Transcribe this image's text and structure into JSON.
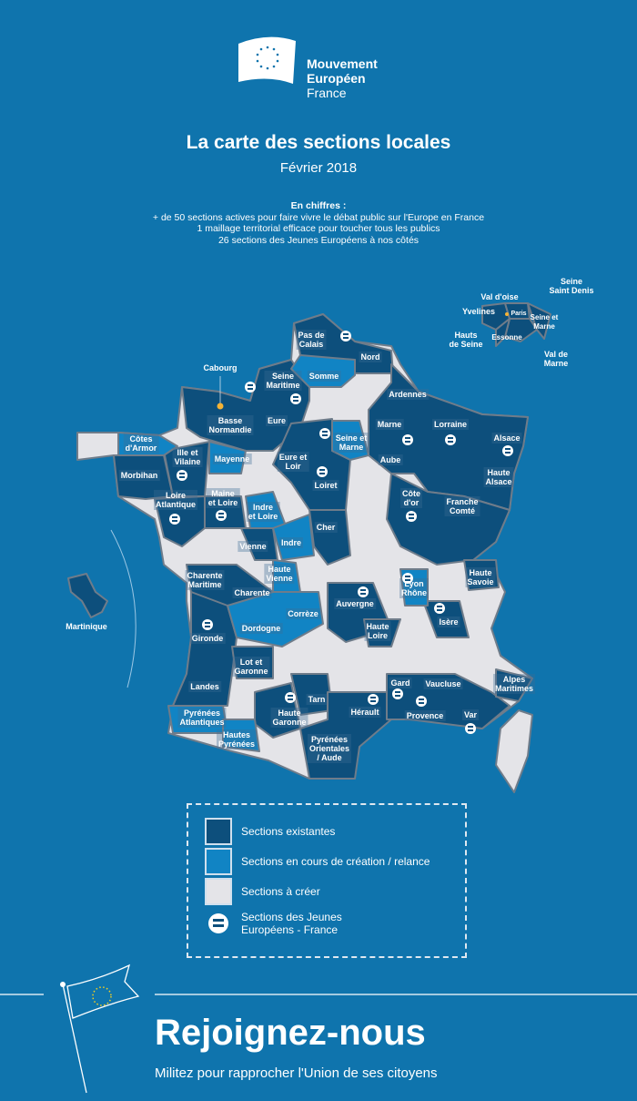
{
  "header": {
    "org_line1": "Mouvement",
    "org_line2": "Européen",
    "org_line3": "France",
    "title": "La carte des sections locales",
    "date": "Février 2018"
  },
  "stats": {
    "heading": "En chiffres :",
    "lines": [
      "+ de 50 sections actives pour faire vivre le débat public sur l'Europe en France",
      "1 maillage territorial efficace pour toucher tous les publics",
      "26 sections des Jeunes Européens à nos côtés"
    ]
  },
  "colors": {
    "background": "#0f74ad",
    "existing": "#0d4f7c",
    "in_progress": "#1184c4",
    "to_create": "#e4e4e8",
    "highlight_point": "#f5b335"
  },
  "map": {
    "sections": [
      {
        "name": "Pas de\nCalais",
        "status": "existing",
        "je": true
      },
      {
        "name": "Nord",
        "status": "existing",
        "je": false
      },
      {
        "name": "Somme",
        "status": "in_progress",
        "je": false
      },
      {
        "name": "Seine\nMaritime",
        "status": "existing",
        "je": true
      },
      {
        "name": "Ardennes",
        "status": "existing",
        "je": false
      },
      {
        "name": "Basse\nNormandie",
        "status": "existing",
        "je": false
      },
      {
        "name": "Eure",
        "status": "existing",
        "je": false
      },
      {
        "name": "Marne",
        "status": "existing",
        "je": true
      },
      {
        "name": "Lorraine",
        "status": "existing",
        "je": true
      },
      {
        "name": "Alsace",
        "status": "existing",
        "je": true
      },
      {
        "name": "Seine et\nMarne",
        "status": "in_progress",
        "je": false
      },
      {
        "name": "Côtes\nd'Armor",
        "status": "in_progress",
        "je": false
      },
      {
        "name": "Ille et\nVilaine",
        "status": "existing",
        "je": true
      },
      {
        "name": "Mayenne",
        "status": "in_progress",
        "je": false
      },
      {
        "name": "Eure et\nLoir",
        "status": "existing",
        "je": false
      },
      {
        "name": "Aube",
        "status": "existing",
        "je": false
      },
      {
        "name": "Morbihan",
        "status": "existing",
        "je": false
      },
      {
        "name": "Haute\nAlsace",
        "status": "existing",
        "je": false
      },
      {
        "name": "Loiret",
        "status": "existing",
        "je": true
      },
      {
        "name": "Loire\nAtlantique",
        "status": "existing",
        "je": true
      },
      {
        "name": "Maine\net Loire",
        "status": "existing",
        "je": true
      },
      {
        "name": "Indre\net Loire",
        "status": "in_progress",
        "je": false
      },
      {
        "name": "Côte\nd'or",
        "status": "existing",
        "je": true
      },
      {
        "name": "Franche\nComté",
        "status": "existing",
        "je": false
      },
      {
        "name": "Cher",
        "status": "existing",
        "je": false
      },
      {
        "name": "Vienne",
        "status": "existing",
        "je": false
      },
      {
        "name": "Indre",
        "status": "in_progress",
        "je": false
      },
      {
        "name": "Haute\nVienne",
        "status": "in_progress",
        "je": false
      },
      {
        "name": "Charente\nMaritime",
        "status": "existing",
        "je": false
      },
      {
        "name": "Charente",
        "status": "existing",
        "je": false
      },
      {
        "name": "Haute\nSavoie",
        "status": "existing",
        "je": false
      },
      {
        "name": "Auvergne",
        "status": "existing",
        "je": true
      },
      {
        "name": "Lyon\nRhône",
        "status": "in_progress",
        "je": true
      },
      {
        "name": "Isère",
        "status": "existing",
        "je": true
      },
      {
        "name": "Corrèze",
        "status": "in_progress",
        "je": false
      },
      {
        "name": "Dordogne",
        "status": "in_progress",
        "je": false
      },
      {
        "name": "Gironde",
        "status": "existing",
        "je": true
      },
      {
        "name": "Haute\nLoire",
        "status": "existing",
        "je": false
      },
      {
        "name": "Lot et\nGaronne",
        "status": "existing",
        "je": false
      },
      {
        "name": "Landes",
        "status": "existing",
        "je": false
      },
      {
        "name": "Gard",
        "status": "existing",
        "je": true
      },
      {
        "name": "Vaucluse",
        "status": "existing",
        "je": false
      },
      {
        "name": "Alpes\nMaritimes",
        "status": "existing",
        "je": false
      },
      {
        "name": "Tarn",
        "status": "existing",
        "je": false
      },
      {
        "name": "Haute\nGaronne",
        "status": "existing",
        "je": true
      },
      {
        "name": "Hérault",
        "status": "existing",
        "je": true
      },
      {
        "name": "Provence",
        "status": "existing",
        "je": true
      },
      {
        "name": "Var",
        "status": "existing",
        "je": true
      },
      {
        "name": "Pyrénées\nAtlantiques",
        "status": "in_progress",
        "je": false
      },
      {
        "name": "Hautes\nPyrénées",
        "status": "in_progress",
        "je": false
      },
      {
        "name": "Pyrénées\nOrientales\n/ Aude",
        "status": "existing",
        "je": false
      }
    ],
    "city": "Cabourg",
    "overseas": "Martinique",
    "ile_de_france": [
      "Seine\nSaint Denis",
      "Val d'oise",
      "Yvelines",
      "Paris",
      "Seine et\nMarne",
      "Hauts\nde Seine",
      "Essonne",
      "Val de\nMarne"
    ]
  },
  "legend": {
    "existing": "Sections existantes",
    "in_progress": "Sections  en cours de création / relance",
    "to_create": "Sections à créer",
    "je_line1": "Sections des Jeunes",
    "je_line2": "Européens - France"
  },
  "footer": {
    "cta": "Rejoignez-nous",
    "tagline": "Militez pour rapprocher l'Union de ses citoyens"
  }
}
